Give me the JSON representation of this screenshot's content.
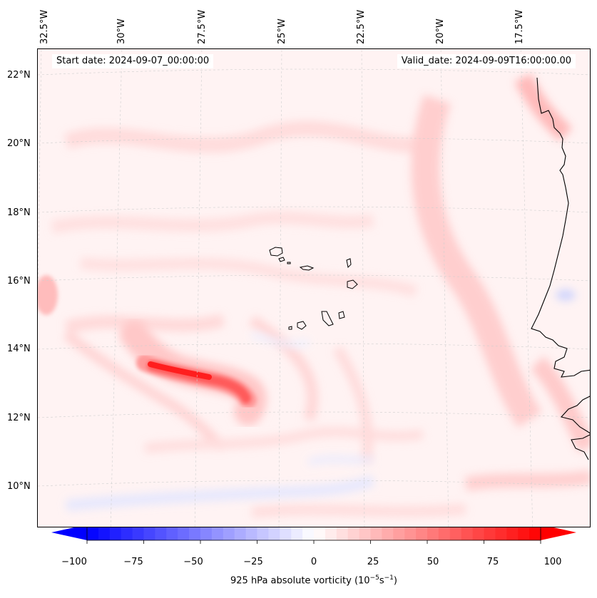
{
  "labels": {
    "start_date": "Start date: 2024-09-07_00:00:00",
    "valid_date": "Valid_date: 2024-09-09T16:00:00.00"
  },
  "axes": {
    "lon_ticks": [
      "32.5°W",
      "30°W",
      "27.5°W",
      "25°W",
      "22.5°W",
      "20°W",
      "17.5°W"
    ],
    "lat_ticks": [
      "22°N",
      "20°N",
      "18°N",
      "16°N",
      "14°N",
      "12°N",
      "10°N"
    ]
  },
  "colorbar": {
    "ticks": [
      "−100",
      "−75",
      "−50",
      "−25",
      "0",
      "25",
      "50",
      "75",
      "100"
    ],
    "tick_values": [
      -100,
      -75,
      -50,
      -25,
      0,
      25,
      50,
      75,
      100
    ],
    "range": [
      -100,
      100
    ],
    "levels": 40,
    "label_text": "925 hPa absolute vorticity (10",
    "label_exp1": "−5",
    "label_mid": "s",
    "label_exp2": "−1",
    "label_end": ")",
    "colormap": "bwr",
    "extend": "both"
  },
  "colors": {
    "coast": "#000000",
    "grid": "#c8c8c8",
    "max_red": "#ff0000",
    "max_blue": "#0000ff"
  },
  "map_features": {
    "region": "Cabo Verde islands and West African coast",
    "vorticity_max_feature": "elongated positive vorticity band near 13–14°N, 25–29°W"
  }
}
